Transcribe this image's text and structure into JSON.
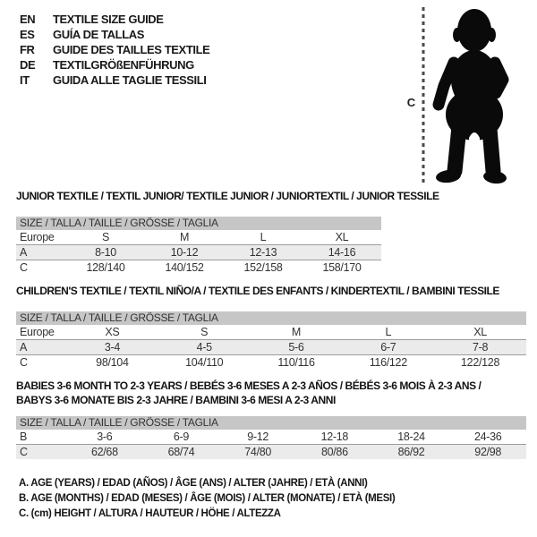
{
  "page": {
    "background": "#ffffff",
    "header_bar_color": "#c6c6c6",
    "shaded_row_color": "#ebebeb",
    "silhouette_color": "#0a0a0a"
  },
  "languages": [
    {
      "code": "EN",
      "label": "TEXTILE SIZE GUIDE"
    },
    {
      "code": "ES",
      "label": "GUÍA DE TALLAS"
    },
    {
      "code": "FR",
      "label": "GUIDE DES TAILLES TEXTILE"
    },
    {
      "code": "DE",
      "label": "TEXTILGRÖßENFÜHRUNG"
    },
    {
      "code": "IT",
      "label": "GUIDA ALLE TAGLIE TESSILI"
    }
  ],
  "figure": {
    "height_marker": "C"
  },
  "tables": [
    {
      "title_lines": [
        "JUNIOR TEXTILE / TEXTIL JUNIOR/ TEXTILE JUNIOR / JUNIORTEXTIL / JUNIOR TESSILE"
      ],
      "size_header": "SIZE / TALLA / TAILLE / GRÖSSE / TAGLIA",
      "rows": [
        {
          "label": "Europe",
          "cells": [
            "S",
            "M",
            "L",
            "XL"
          ],
          "shaded": false
        },
        {
          "label": "A",
          "cells": [
            "8-10",
            "10-12",
            "12-13",
            "14-16"
          ],
          "shaded": true
        },
        {
          "label": "C",
          "cells": [
            "128/140",
            "140/152",
            "152/158",
            "158/170"
          ],
          "shaded": false
        }
      ]
    },
    {
      "title_lines": [
        "CHILDREN'S TEXTILE / TEXTIL NIÑO/A / TEXTILE DES ENFANTS / KINDERTEXTIL / BAMBINI TESSILE"
      ],
      "size_header": "SIZE / TALLA / TAILLE / GRÖSSE / TAGLIA",
      "rows": [
        {
          "label": "Europe",
          "cells": [
            "XS",
            "S",
            "M",
            "L",
            "XL"
          ],
          "shaded": false
        },
        {
          "label": "A",
          "cells": [
            "3-4",
            "4-5",
            "5-6",
            "6-7",
            "7-8"
          ],
          "shaded": true
        },
        {
          "label": "C",
          "cells": [
            "98/104",
            "104/110",
            "110/116",
            "116/122",
            "122/128"
          ],
          "shaded": false
        }
      ]
    },
    {
      "title_lines": [
        "BABIES 3-6 MONTH TO 2-3 YEARS / BEBÉS 3-6 MESES A 2-3 AÑOS / BÉBÉS 3-6 MOIS À 2-3 ANS /",
        "BABYS 3-6 MONATE BIS 2-3 JAHRE / BAMBINI 3-6 MESI A 2-3 ANNI"
      ],
      "size_header": "SIZE / TALLA / TAILLE / GRÖSSE / TAGLIA",
      "rows": [
        {
          "label": "B",
          "cells": [
            "3-6",
            "6-9",
            "9-12",
            "12-18",
            "18-24",
            "24-36"
          ],
          "shaded": false
        },
        {
          "label": "C",
          "cells": [
            "62/68",
            "68/74",
            "74/80",
            "80/86",
            "86/92",
            "92/98"
          ],
          "shaded": true
        }
      ]
    }
  ],
  "legend": [
    "A. AGE (YEARS) / EDAD (AÑOS) / ÂGE (ANS) / ALTER (JAHRE) / ETÀ (ANNI)",
    "B. AGE (MONTHS) / EDAD (MESES) / ÂGE (MOIS) / ALTER (MONATE) / ETÀ (MESI)",
    "C. (cm) HEIGHT / ALTURA / HAUTEUR / HÖHE / ALTEZZA"
  ]
}
